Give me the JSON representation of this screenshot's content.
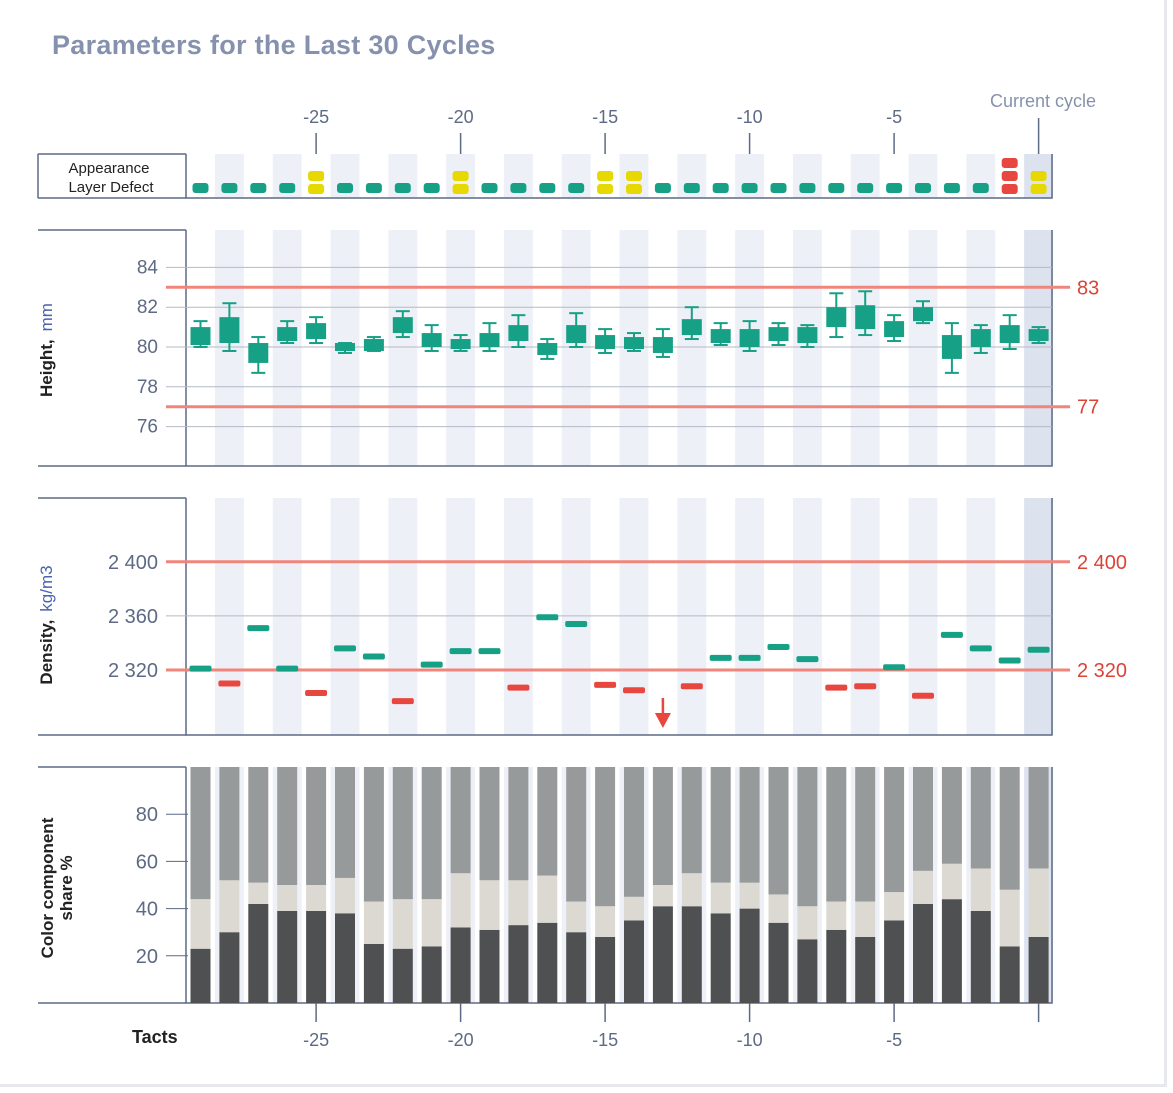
{
  "title": "Parameters for the Last 30 Cycles",
  "colors": {
    "ok": "#16a085",
    "warning": "#e6d800",
    "alarm": "#e8473f",
    "limit_line": "#f0857b",
    "limit_text": "#d94437",
    "axis_text": "#5d6a85",
    "stripe": "#eef0f7",
    "current_stripe": "#dde2ef",
    "dark_component": "#4f5052",
    "light_component": "#dcd9d2",
    "gray_component": "#969a9b"
  },
  "chart_data": {
    "type": "multi-panel",
    "x_ticks": [
      -25,
      -20,
      -15,
      -10,
      -5
    ],
    "x_range": [
      -29,
      0
    ],
    "xlabel": "Tacts",
    "current_cycle_label": "Current cycle",
    "current_cycle": 0,
    "appearance": {
      "label_line1": "Appearance",
      "label_line2": "Layer Defect",
      "defect_levels": [
        0,
        0,
        0,
        0,
        1,
        0,
        0,
        0,
        0,
        1,
        0,
        0,
        0,
        0,
        1,
        1,
        0,
        0,
        0,
        0,
        0,
        0,
        0,
        0,
        0,
        0,
        0,
        0,
        2,
        1
      ]
    },
    "height": {
      "type": "boxplot",
      "ylabel_main": "Height,",
      "ylabel_unit": "mm",
      "ylim": [
        75,
        86
      ],
      "y_ticks": [
        "76",
        "78",
        "80",
        "82",
        "84"
      ],
      "limits": [
        83,
        77
      ],
      "limit_labels": [
        "83",
        "77"
      ],
      "boxes": [
        {
          "whisker_low": 80.0,
          "q1": 80.1,
          "q3": 81.0,
          "whisker_high": 81.3
        },
        {
          "whisker_low": 79.8,
          "q1": 80.2,
          "q3": 81.5,
          "whisker_high": 82.2
        },
        {
          "whisker_low": 78.7,
          "q1": 79.2,
          "q3": 80.2,
          "whisker_high": 80.5
        },
        {
          "whisker_low": 80.2,
          "q1": 80.3,
          "q3": 81.0,
          "whisker_high": 81.3
        },
        {
          "whisker_low": 80.2,
          "q1": 80.4,
          "q3": 81.2,
          "whisker_high": 81.5
        },
        {
          "whisker_low": 79.7,
          "q1": 79.8,
          "q3": 80.2,
          "whisker_high": 80.2
        },
        {
          "whisker_low": 79.8,
          "q1": 79.8,
          "q3": 80.4,
          "whisker_high": 80.5
        },
        {
          "whisker_low": 80.5,
          "q1": 80.7,
          "q3": 81.5,
          "whisker_high": 81.8
        },
        {
          "whisker_low": 79.8,
          "q1": 80.0,
          "q3": 80.7,
          "whisker_high": 81.1
        },
        {
          "whisker_low": 79.8,
          "q1": 79.9,
          "q3": 80.4,
          "whisker_high": 80.6
        },
        {
          "whisker_low": 79.8,
          "q1": 80.0,
          "q3": 80.7,
          "whisker_high": 81.2
        },
        {
          "whisker_low": 80.0,
          "q1": 80.3,
          "q3": 81.1,
          "whisker_high": 81.6
        },
        {
          "whisker_low": 79.4,
          "q1": 79.6,
          "q3": 80.2,
          "whisker_high": 80.4
        },
        {
          "whisker_low": 80.0,
          "q1": 80.2,
          "q3": 81.1,
          "whisker_high": 81.7
        },
        {
          "whisker_low": 79.7,
          "q1": 79.9,
          "q3": 80.6,
          "whisker_high": 80.9
        },
        {
          "whisker_low": 79.8,
          "q1": 79.9,
          "q3": 80.5,
          "whisker_high": 80.7
        },
        {
          "whisker_low": 79.5,
          "q1": 79.7,
          "q3": 80.5,
          "whisker_high": 80.9
        },
        {
          "whisker_low": 80.4,
          "q1": 80.6,
          "q3": 81.4,
          "whisker_high": 82.0
        },
        {
          "whisker_low": 80.1,
          "q1": 80.2,
          "q3": 80.9,
          "whisker_high": 81.2
        },
        {
          "whisker_low": 79.8,
          "q1": 80.0,
          "q3": 80.9,
          "whisker_high": 81.3
        },
        {
          "whisker_low": 80.1,
          "q1": 80.3,
          "q3": 81.0,
          "whisker_high": 81.2
        },
        {
          "whisker_low": 80.0,
          "q1": 80.2,
          "q3": 81.0,
          "whisker_high": 81.1
        },
        {
          "whisker_low": 80.5,
          "q1": 81.0,
          "q3": 82.0,
          "whisker_high": 82.7
        },
        {
          "whisker_low": 80.6,
          "q1": 80.9,
          "q3": 82.1,
          "whisker_high": 82.8
        },
        {
          "whisker_low": 80.3,
          "q1": 80.5,
          "q3": 81.3,
          "whisker_high": 81.6
        },
        {
          "whisker_low": 81.2,
          "q1": 81.3,
          "q3": 82.0,
          "whisker_high": 82.3
        },
        {
          "whisker_low": 78.7,
          "q1": 79.4,
          "q3": 80.6,
          "whisker_high": 81.2
        },
        {
          "whisker_low": 79.7,
          "q1": 80.0,
          "q3": 80.9,
          "whisker_high": 81.1
        },
        {
          "whisker_low": 79.9,
          "q1": 80.2,
          "q3": 81.1,
          "whisker_high": 81.6
        },
        {
          "whisker_low": 80.2,
          "q1": 80.3,
          "q3": 80.9,
          "whisker_high": 81.0
        }
      ]
    },
    "density": {
      "ylabel_main": "Density,",
      "ylabel_unit": "kg/m3",
      "ylim": [
        2290,
        2415
      ],
      "y_ticks": [
        "2 320",
        "2 360",
        "2 400"
      ],
      "limits": [
        2400,
        2320
      ],
      "limit_labels": [
        "2 400",
        "2 320"
      ],
      "values": [
        2321,
        2310,
        2351,
        2321,
        2303,
        2336,
        2330,
        2297,
        2324,
        2334,
        2334,
        2307,
        2359,
        2354,
        2309,
        2305,
        null,
        2308,
        2329,
        2329,
        2337,
        2328,
        2307,
        2308,
        2322,
        2301,
        2346,
        2336,
        2327,
        2335
      ],
      "out_of_range_low_index": 16
    },
    "color_share": {
      "type": "stacked-bar",
      "ylabel_line1": "Color component",
      "ylabel_line2": "share %",
      "ylim": [
        0,
        100
      ],
      "y_ticks": [
        "20",
        "40",
        "60",
        "80"
      ],
      "series": [
        {
          "color": "#4f5052",
          "values": [
            23,
            30,
            42,
            39,
            39,
            38,
            25,
            23,
            24,
            32,
            31,
            33,
            34,
            30,
            28,
            35,
            41,
            41,
            38,
            40,
            34,
            27,
            31,
            28,
            35,
            42,
            44,
            39,
            24,
            28
          ]
        },
        {
          "color": "#dcd9d2",
          "values": [
            21,
            22,
            9,
            11,
            11,
            15,
            18,
            21,
            20,
            23,
            21,
            19,
            20,
            13,
            13,
            10,
            9,
            14,
            13,
            11,
            12,
            14,
            12,
            15,
            12,
            14,
            15,
            18,
            24,
            29
          ]
        },
        {
          "color": "#969a9b",
          "values": [
            56,
            48,
            49,
            50,
            50,
            47,
            57,
            56,
            56,
            45,
            48,
            48,
            46,
            57,
            59,
            55,
            50,
            45,
            49,
            49,
            54,
            59,
            57,
            57,
            53,
            44,
            41,
            43,
            52,
            43
          ]
        }
      ]
    }
  }
}
